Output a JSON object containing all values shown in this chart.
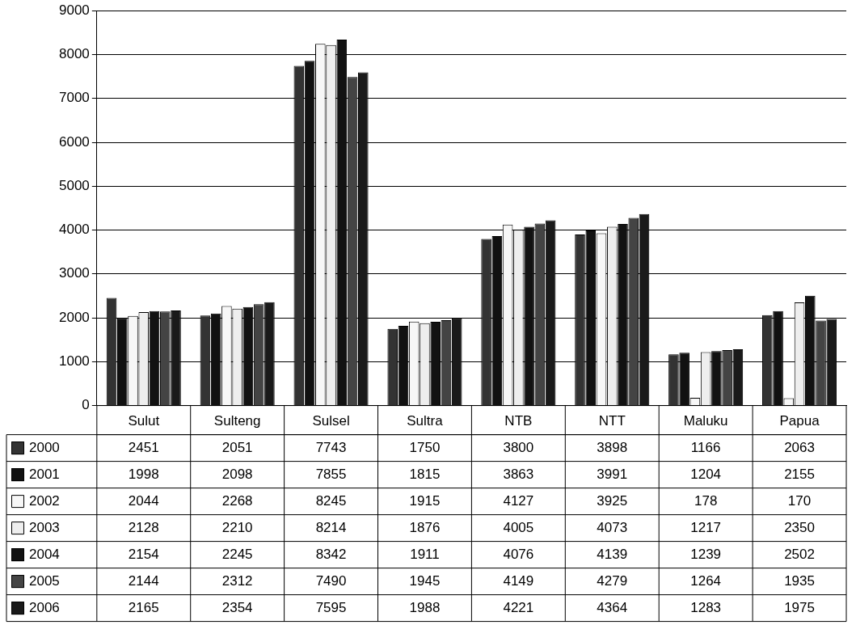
{
  "chart_data": {
    "type": "bar",
    "categories": [
      "Sulut",
      "Sulteng",
      "Sulsel",
      "Sultra",
      "NTB",
      "NTT",
      "Maluku",
      "Papua"
    ],
    "series": [
      {
        "name": "2000",
        "color": "#333333",
        "values": [
          2451,
          2051,
          7743,
          1750,
          3800,
          3898,
          1166,
          2063
        ]
      },
      {
        "name": "2001",
        "color": "#111111",
        "values": [
          1998,
          2098,
          7855,
          1815,
          3863,
          3991,
          1204,
          2155
        ]
      },
      {
        "name": "2002",
        "color": "#f7f7f7",
        "values": [
          2044,
          2268,
          8245,
          1915,
          4127,
          3925,
          178,
          170
        ]
      },
      {
        "name": "2003",
        "color": "#eeeeee",
        "values": [
          2128,
          2210,
          8214,
          1876,
          4005,
          4073,
          1217,
          2350
        ]
      },
      {
        "name": "2004",
        "color": "#121212",
        "values": [
          2154,
          2245,
          8342,
          1911,
          4076,
          4139,
          1239,
          2502
        ]
      },
      {
        "name": "2005",
        "color": "#444444",
        "values": [
          2144,
          2312,
          7490,
          1945,
          4149,
          4279,
          1264,
          1935
        ]
      },
      {
        "name": "2006",
        "color": "#1a1a1a",
        "values": [
          2165,
          2354,
          7595,
          1988,
          4221,
          4364,
          1283,
          1975
        ]
      }
    ],
    "ylim": [
      0,
      9000
    ],
    "yticks": [
      0,
      1000,
      2000,
      3000,
      4000,
      5000,
      6000,
      7000,
      8000,
      9000
    ],
    "grid": "y",
    "legend": "bottom",
    "data_labels": true
  }
}
